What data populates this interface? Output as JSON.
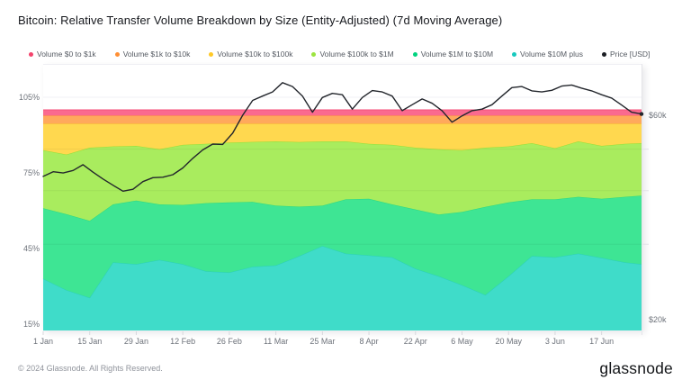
{
  "page": {
    "footer_copyright": "© 2024 Glassnode. All Rights Reserved.",
    "brand_logo_text": "glassnode"
  },
  "chart_data": {
    "type": "area",
    "stacked": true,
    "percent_scale": true,
    "title": "Bitcoin: Relative Transfer Volume Breakdown by Size (Entity-Adjusted) (7d Moving Average)",
    "legend_position": "top",
    "grid": "horizontal-faint",
    "x_axis": {
      "tick_labels": [
        "1 Jan",
        "15 Jan",
        "29 Jan",
        "12 Feb",
        "26 Feb",
        "11 Mar",
        "25 Mar",
        "8 Apr",
        "22 Apr",
        "6 May",
        "20 May",
        "3 Jun",
        "17 Jun"
      ],
      "tick_days": [
        0,
        14,
        28,
        42,
        56,
        70,
        84,
        98,
        112,
        126,
        140,
        154,
        168
      ],
      "domain_days": [
        0,
        180
      ]
    },
    "y_axis_left": {
      "unit": "%",
      "tick_labels": [
        "105%",
        "75%",
        "45%",
        "15%"
      ],
      "tick_values": [
        105,
        75,
        45,
        15
      ],
      "range": [
        12.5,
        118
      ]
    },
    "y_axis_right": {
      "unit": "USD",
      "scale": "log",
      "tick_labels": [
        "$60k",
        "$20k"
      ],
      "tick_values_k": [
        60,
        20
      ],
      "minor_tick_values_k": [
        50,
        40,
        30
      ]
    },
    "sample_days": [
      0,
      7,
      14,
      21,
      28,
      35,
      42,
      49,
      56,
      63,
      70,
      77,
      84,
      91,
      98,
      105,
      112,
      119,
      126,
      133,
      140,
      147,
      154,
      161,
      168,
      175,
      180
    ],
    "series": [
      {
        "name": "Volume $0 to $1k",
        "legend_color": "#F4436C",
        "fill": "#FA6A8F",
        "stroke": "#F4517B",
        "values": [
          2.3,
          2.3,
          2.3,
          2.3,
          2.3,
          2.3,
          2.3,
          2.3,
          2.3,
          2.3,
          2.3,
          2.3,
          2.3,
          2.3,
          2.3,
          2.3,
          2.3,
          2.3,
          2.3,
          2.3,
          2.3,
          2.3,
          2.3,
          2.3,
          2.3,
          2.3,
          2.3
        ]
      },
      {
        "name": "Volume $1k to $10k",
        "legend_color": "#FF8F34",
        "fill": "#FFA95C",
        "stroke": "#FB9638",
        "values": [
          3.2,
          3.2,
          3.2,
          3.2,
          3.2,
          3.2,
          3.2,
          3.2,
          3.2,
          3.2,
          3.2,
          3.2,
          3.2,
          3.2,
          3.2,
          3.2,
          3.2,
          3.2,
          3.2,
          3.2,
          3.2,
          3.2,
          3.2,
          3.2,
          3.2,
          3.2,
          3.2
        ]
      },
      {
        "name": "Volume $10k to $100k",
        "legend_color": "#FFC926",
        "fill": "#FFD84F",
        "stroke": "#F7C62B",
        "values": [
          10.5,
          12.2,
          9.5,
          9.0,
          8.8,
          10.1,
          8.4,
          8.0,
          7.5,
          7.2,
          7.0,
          7.3,
          7.0,
          7.0,
          8.0,
          8.4,
          9.5,
          10.1,
          10.5,
          9.5,
          9.0,
          7.7,
          9.7,
          7.0,
          8.8,
          8.0,
          7.7
        ]
      },
      {
        "name": "Volume $100k to $1M",
        "legend_color": "#9CE43F",
        "fill": "#A9EC5E",
        "stroke": "#94DE37",
        "values": [
          23.0,
          23.7,
          29.0,
          23.0,
          21.7,
          21.9,
          23.8,
          23.5,
          23.7,
          23.8,
          25.5,
          25.6,
          25.5,
          23.0,
          21.8,
          23.6,
          24.5,
          25.9,
          24.5,
          23.5,
          22.2,
          22.3,
          20.3,
          22.0,
          21.0,
          21.0,
          20.8
        ]
      },
      {
        "name": "Volume $1M to $10M",
        "legend_color": "#00D37F",
        "fill": "#3EE594",
        "stroke": "#27D883",
        "values": [
          28.0,
          30.1,
          30.5,
          23.0,
          25.2,
          22.0,
          23.5,
          27.0,
          27.8,
          25.7,
          23.7,
          19.6,
          16.0,
          21.5,
          22.4,
          21.0,
          23.5,
          24.5,
          29.0,
          34.9,
          29.3,
          22.5,
          23.0,
          22.5,
          23.4,
          26.0,
          27.2
        ]
      },
      {
        "name": "Volume $10M plus",
        "legend_color": "#17C9BE",
        "fill": "#3FDCC9",
        "stroke": "#2BCFBA",
        "values": [
          33.0,
          28.5,
          25.5,
          39.5,
          38.8,
          40.5,
          38.8,
          36.0,
          35.5,
          37.8,
          38.3,
          42.0,
          46.0,
          43.0,
          42.3,
          41.5,
          37.0,
          34.0,
          30.5,
          26.6,
          34.0,
          42.0,
          41.5,
          43.0,
          41.3,
          39.5,
          38.8
        ]
      }
    ],
    "price_series": {
      "name": "Price [USD]",
      "color": "#23262C",
      "days": [
        0,
        3,
        6,
        9,
        12,
        15,
        18,
        21,
        24,
        27,
        30,
        33,
        36,
        39,
        42,
        45,
        48,
        51,
        54,
        57,
        60,
        63,
        66,
        69,
        72,
        75,
        78,
        81,
        84,
        87,
        90,
        93,
        96,
        99,
        102,
        105,
        108,
        111,
        114,
        117,
        120,
        123,
        126,
        129,
        132,
        135,
        138,
        141,
        144,
        147,
        150,
        153,
        156,
        159,
        162,
        165,
        168,
        171,
        174,
        177,
        180
      ],
      "values_usd_k": [
        43.2,
        44.3,
        44.0,
        44.6,
        46.0,
        44.2,
        42.6,
        41.2,
        39.9,
        40.3,
        42.0,
        42.9,
        43.0,
        43.6,
        45.2,
        47.6,
        49.8,
        51.4,
        51.3,
        54.5,
        60.0,
        65.0,
        66.5,
        68.0,
        71.5,
        70.0,
        66.5,
        61.0,
        66.0,
        67.5,
        67.0,
        62.0,
        66.0,
        68.5,
        68.0,
        66.5,
        61.5,
        63.5,
        65.5,
        64.0,
        61.5,
        57.8,
        59.8,
        61.5,
        62.0,
        63.5,
        66.5,
        69.6,
        70.0,
        68.4,
        68.0,
        68.6,
        70.2,
        70.6,
        69.4,
        68.4,
        67.0,
        65.8,
        63.4,
        61.0,
        60.4
      ]
    }
  }
}
